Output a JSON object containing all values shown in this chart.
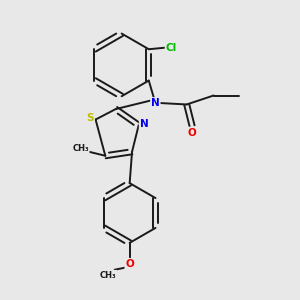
{
  "background_color": "#e8e8e8",
  "bond_color": "#1a1a1a",
  "atom_colors": {
    "N": "#0000ee",
    "O": "#ee0000",
    "S": "#bbbb00",
    "Cl": "#00bb00",
    "C": "#1a1a1a"
  },
  "lw": 1.4,
  "fs": 7.5,
  "fig_size": [
    3.0,
    3.0
  ],
  "dpi": 100,
  "xlim": [
    0,
    10
  ],
  "ylim": [
    0,
    10
  ]
}
